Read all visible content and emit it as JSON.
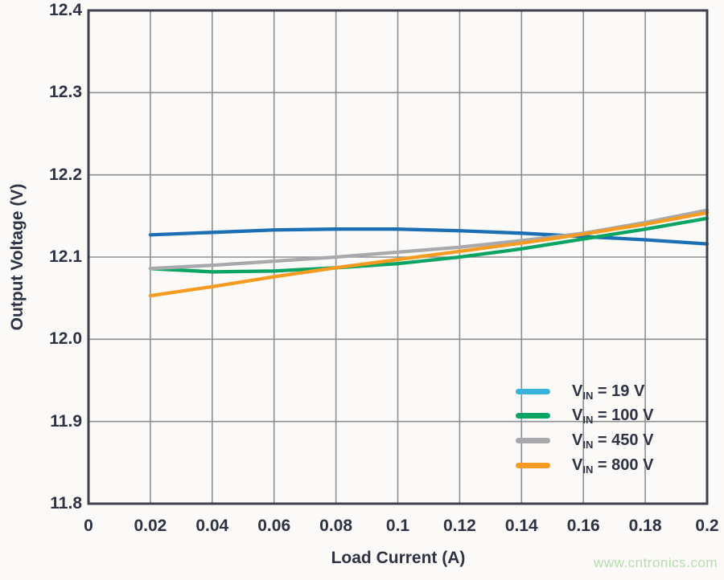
{
  "watermark": {
    "text": "www.cntronics.com",
    "color": "#b6ddb0"
  },
  "colors": {
    "background": "#fbfaf8",
    "plot_border": "#3e414b",
    "gridline": "#8d8f92",
    "text": "#2d3343"
  },
  "chart_data": {
    "type": "line",
    "title": "",
    "xlabel": "Load Current (A)",
    "ylabel": "Output Voltage (V)",
    "xlim": [
      0,
      0.2
    ],
    "ylim": [
      11.8,
      12.4
    ],
    "grid": true,
    "legend_position": "lower right",
    "x_tick_values": [
      0,
      0.02,
      0.04,
      0.06,
      0.08,
      0.1,
      0.12,
      0.14,
      0.16,
      0.18,
      0.2
    ],
    "x_tick_labels": [
      "0",
      "0.02",
      "0.04",
      "0.06",
      "0.08",
      "0.1",
      "0.12",
      "0.14",
      "0.16",
      "0.18",
      "0.2"
    ],
    "y_tick_values": [
      11.8,
      11.9,
      12.0,
      12.1,
      12.2,
      12.3,
      12.4
    ],
    "y_tick_labels": [
      "11.8",
      "11.9",
      "12.0",
      "12.1",
      "12.2",
      "12.3",
      "12.4"
    ],
    "x": [
      0.02,
      0.04,
      0.06,
      0.08,
      0.1,
      0.12,
      0.14,
      0.16,
      0.18,
      0.2
    ],
    "series": [
      {
        "name": "VIN = 19 V",
        "legend": {
          "pre": "V",
          "sub": "IN",
          "rest": " = 19 V"
        },
        "line_color": "#1d6fb5",
        "swatch_color": "#38b3de",
        "values": [
          12.127,
          12.13,
          12.133,
          12.134,
          12.134,
          12.132,
          12.129,
          12.125,
          12.121,
          12.116
        ]
      },
      {
        "name": "VIN = 100 V",
        "legend": {
          "pre": "V",
          "sub": "IN",
          "rest": " = 100 V"
        },
        "line_color": "#0aa562",
        "swatch_color": "#0aa562",
        "values": [
          12.086,
          12.082,
          12.083,
          12.087,
          12.092,
          12.1,
          12.11,
          12.122,
          12.134,
          12.147
        ]
      },
      {
        "name": "VIN = 450 V",
        "legend": {
          "pre": "V",
          "sub": "IN",
          "rest": " = 450 V"
        },
        "line_color": "#a7a9ac",
        "swatch_color": "#a7a9ac",
        "values": [
          12.086,
          12.09,
          12.095,
          12.1,
          12.106,
          12.112,
          12.12,
          12.129,
          12.142,
          12.157
        ]
      },
      {
        "name": "VIN = 800 V",
        "legend": {
          "pre": "V",
          "sub": "IN",
          "rest": " = 800 V"
        },
        "line_color": "#f59b21",
        "swatch_color": "#f59b21",
        "values": [
          12.053,
          12.064,
          12.076,
          12.087,
          12.097,
          12.107,
          12.117,
          12.128,
          12.14,
          12.154
        ]
      }
    ]
  }
}
